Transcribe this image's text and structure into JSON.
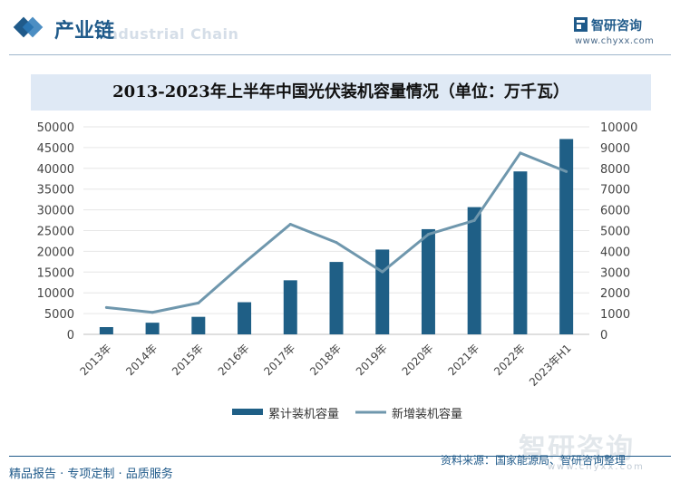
{
  "header": {
    "section_title": "产业链",
    "section_watermark": "Industrial Chain",
    "brand_name": "智研咨询",
    "brand_url": "www.chyxx.com"
  },
  "chart_data": {
    "type": "bar+line",
    "title": "2013-2023年上半年中国光伏装机容量情况（单位：万千瓦）",
    "categories": [
      "2013年",
      "2014年",
      "2015年",
      "2016年",
      "2017年",
      "2018年",
      "2019年",
      "2020年",
      "2021年",
      "2022年",
      "2023年H1"
    ],
    "series": [
      {
        "name": "累计装机容量",
        "type": "bar",
        "axis": "left",
        "color": "#1f5f86",
        "values": [
          1745,
          2805,
          4218,
          7742,
          13025,
          17446,
          20430,
          25343,
          30656,
          39261,
          47067
        ]
      },
      {
        "name": "新增装机容量",
        "type": "line",
        "axis": "right",
        "color": "#6f97ad",
        "values": [
          1292,
          1060,
          1513,
          3454,
          5306,
          4426,
          3011,
          4820,
          5488,
          8741,
          7842
        ]
      }
    ],
    "y_left": {
      "min": 0,
      "max": 50000,
      "step": 5000,
      "ticks": [
        "0",
        "5000",
        "10000",
        "15000",
        "20000",
        "25000",
        "30000",
        "35000",
        "40000",
        "45000",
        "50000"
      ]
    },
    "y_right": {
      "min": 0,
      "max": 10000,
      "step": 1000,
      "ticks": [
        "0",
        "1000",
        "2000",
        "3000",
        "4000",
        "5000",
        "6000",
        "7000",
        "8000",
        "9000",
        "10000"
      ]
    },
    "grid": true,
    "legend_position": "bottom"
  },
  "footer": {
    "left_text": "精品报告 · 专项定制 · 品质服务",
    "source_text": "资料来源：国家能源局、智研咨询整理",
    "watermark_text": "智研咨询",
    "watermark_url": "www.chyxx.com"
  }
}
